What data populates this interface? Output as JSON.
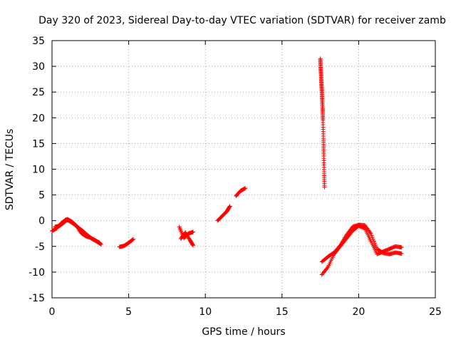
{
  "chart_data": {
    "type": "scatter",
    "title": "Day 320 of 2023, Sidereal Day-to-day VTEC variation (SDTVAR) for receiver zamb",
    "xlabel": "GPS time / hours",
    "ylabel": "SDTVAR / TECUs",
    "xlim": [
      0,
      25
    ],
    "ylim": [
      -15,
      35
    ],
    "xticks": [
      0,
      5,
      10,
      15,
      20,
      25
    ],
    "yticks": [
      -15,
      -10,
      -5,
      0,
      5,
      10,
      15,
      20,
      25,
      30,
      35
    ],
    "xtick_labels": [
      "0",
      "5",
      "10",
      "15",
      "20",
      "25"
    ],
    "ytick_labels": [
      "-15",
      "-10",
      "-5",
      "0",
      "5",
      "10",
      "15",
      "20",
      "25",
      "30",
      "35"
    ],
    "grid": true,
    "marker": "+",
    "marker_color": "#ff0000",
    "series": [
      {
        "name": "SDTVAR",
        "segments": [
          {
            "x": [
              0.0,
              0.3,
              0.6,
              0.9,
              1.1,
              1.4,
              1.7,
              2.0,
              2.3,
              2.6,
              2.9,
              3.2
            ],
            "y": [
              -2.0,
              -1.5,
              -0.5,
              0.2,
              0.0,
              -0.6,
              -1.3,
              -2.0,
              -2.8,
              -3.5,
              -4.0,
              -4.6
            ]
          },
          {
            "x": [
              0.2,
              0.5,
              0.8,
              1.0,
              1.3,
              1.6,
              1.9,
              2.2,
              2.5,
              2.8,
              3.1
            ],
            "y": [
              -1.2,
              -1.0,
              -0.3,
              0.3,
              -0.2,
              -1.0,
              -2.4,
              -3.0,
              -3.3,
              -3.8,
              -4.3
            ]
          },
          {
            "x": [
              4.4,
              4.7,
              5.0,
              5.3
            ],
            "y": [
              -5.1,
              -4.9,
              -4.3,
              -3.6
            ]
          },
          {
            "x": [
              8.3,
              8.6,
              8.9,
              9.2
            ],
            "y": [
              -1.2,
              -3.4,
              -2.5,
              -2.2
            ]
          },
          {
            "x": [
              8.4,
              8.7,
              9.0,
              9.2
            ],
            "y": [
              -3.5,
              -2.3,
              -3.8,
              -4.8
            ]
          },
          {
            "x": [
              10.8,
              11.1,
              11.4,
              11.6
            ],
            "y": [
              0.0,
              0.9,
              1.8,
              2.8
            ]
          },
          {
            "x": [
              12.0,
              12.3,
              12.6
            ],
            "y": [
              4.8,
              5.8,
              6.3
            ]
          },
          {
            "x": [
              17.5,
              17.52,
              17.55,
              17.57,
              17.6,
              17.62,
              17.65,
              17.67,
              17.7,
              17.72,
              17.75,
              17.77
            ],
            "y": [
              31.5,
              29.8,
              28.3,
              26.7,
              25.2,
              23.5,
              21.5,
              19.5,
              16.0,
              13.0,
              9.5,
              6.5
            ]
          },
          {
            "x": [
              17.6,
              18.0,
              18.4,
              18.8,
              19.2,
              19.6,
              20.0,
              20.4,
              20.8,
              21.2,
              21.6,
              22.0,
              22.4,
              22.8
            ],
            "y": [
              -10.5,
              -9.0,
              -6.5,
              -5.0,
              -3.5,
              -2.0,
              -1.0,
              -1.5,
              -4.0,
              -6.5,
              -6.0,
              -5.5,
              -5.0,
              -5.2
            ]
          },
          {
            "x": [
              17.6,
              18.0,
              18.4,
              18.8,
              19.2,
              19.6,
              20.0,
              20.4,
              20.8,
              21.2,
              21.6,
              22.0,
              22.4,
              22.8
            ],
            "y": [
              -8.0,
              -7.0,
              -6.2,
              -4.8,
              -2.8,
              -1.2,
              -0.8,
              -0.9,
              -2.5,
              -5.5,
              -6.3,
              -6.5,
              -6.2,
              -6.4
            ]
          }
        ]
      }
    ]
  }
}
